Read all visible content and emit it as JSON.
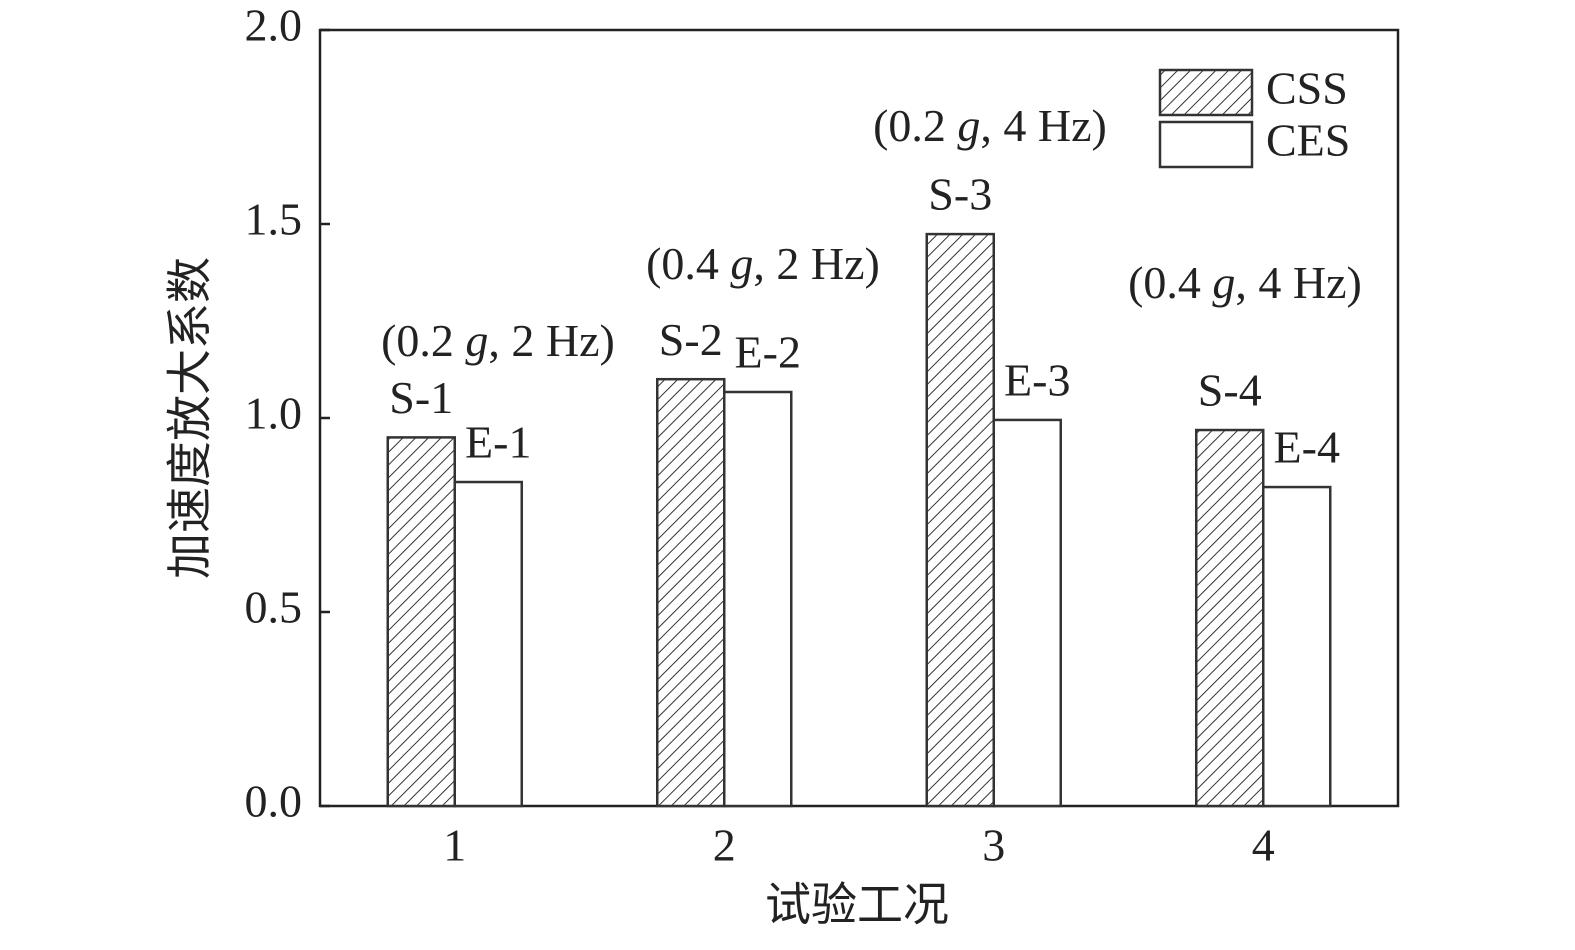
{
  "chart_data": {
    "type": "bar",
    "x_label": "试验工况",
    "y_label": "加速度放大系数",
    "categories": [
      "1",
      "2",
      "3",
      "4"
    ],
    "series": [
      {
        "name": "CSS",
        "color": "#ffffff",
        "hatch": true,
        "values": [
          0.95,
          1.1,
          1.474,
          0.969
        ],
        "labels": [
          "S-1",
          "S-2",
          "S-3",
          "S-4"
        ]
      },
      {
        "name": "CES",
        "color": "#ffffff",
        "hatch": false,
        "values": [
          0.835,
          1.067,
          0.995,
          0.822
        ],
        "labels": [
          "E-1",
          "E-2",
          "E-3",
          "E-4"
        ]
      }
    ],
    "conditions": [
      {
        "pre": "(0.2 ",
        "italic": "g",
        "post": ", 2 Hz)"
      },
      {
        "pre": "(0.4 ",
        "italic": "g",
        "post": ", 2 Hz)"
      },
      {
        "pre": "(0.2 ",
        "italic": "g",
        "post": ", 4 Hz)"
      },
      {
        "pre": "(0.4 ",
        "italic": "g",
        "post": ", 4 Hz)"
      }
    ],
    "ylim": [
      0,
      2
    ],
    "yticks": [
      {
        "value": 0,
        "label": "0.0"
      },
      {
        "value": 0.5,
        "label": "0.5"
      },
      {
        "value": 1,
        "label": "1.0"
      },
      {
        "value": 1.5,
        "label": "1.5"
      },
      {
        "value": 2,
        "label": "2.0"
      }
    ],
    "grid": false,
    "legend": "upper right"
  }
}
